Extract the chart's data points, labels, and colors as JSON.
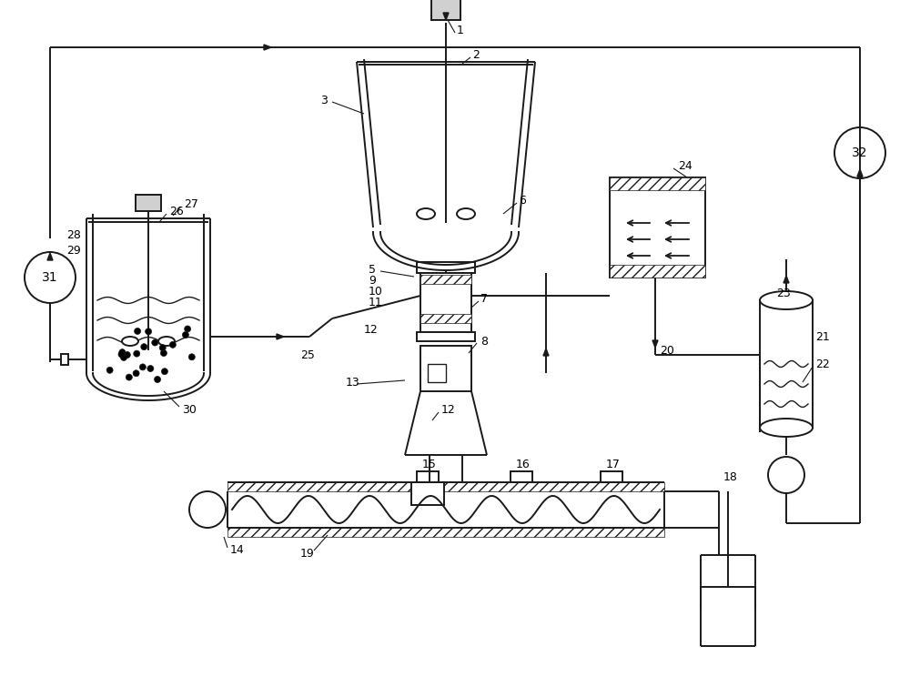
{
  "bg_color": "#ffffff",
  "line_color": "#1a1a1a",
  "figsize": [
    10.0,
    7.66
  ],
  "dpi": 100
}
